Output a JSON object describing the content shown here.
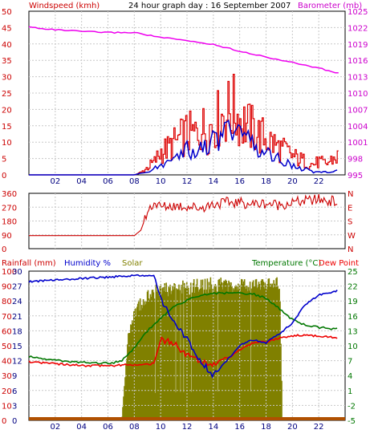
{
  "header": {
    "title": "24 hour graph day : 16 September 2007",
    "left_label": "Windspeed (kmh)",
    "right_label": "Barometer (mb)"
  },
  "colors": {
    "windspeed": "#dd0000",
    "windgust": "#dd0000",
    "windavg": "#0000cc",
    "barometer": "#ee00ee",
    "winddir": "#cc0000",
    "rainfall": "#cc0000",
    "humidity": "#0000cc",
    "solar": "#808000",
    "temperature": "#007700",
    "dewpoint": "#ee0000",
    "axis_left": "#cc0000",
    "axis_right": "#cc00cc",
    "axis_temp": "#007700",
    "grid": "#c8c8c8",
    "tick": "#000080"
  },
  "chart_data": [
    {
      "type": "line",
      "title": "24 hour graph day : 16 September 2007",
      "ylabel": "Windspeed (kmh)",
      "y2label": "Barometer (mb)",
      "ylim": [
        0,
        50
      ],
      "y2lim": [
        995,
        1025
      ],
      "x_ticks": [
        "02",
        "04",
        "06",
        "08",
        "10",
        "12",
        "14",
        "16",
        "18",
        "20",
        "22"
      ],
      "y_ticks": [
        "0",
        "5",
        "10",
        "15",
        "20",
        "25",
        "30",
        "35",
        "40",
        "45",
        "50"
      ],
      "y2_ticks": [
        "995",
        "998",
        "1001",
        "1004",
        "1007",
        "1010",
        "1013",
        "1016",
        "1019",
        "1022",
        "1025"
      ],
      "grid": true,
      "series": [
        {
          "name": "Windspeed (kmh)",
          "x": [
            0,
            8,
            8.5,
            9,
            9.5,
            10,
            10.5,
            11,
            11.5,
            12,
            12.5,
            13,
            13.5,
            14,
            14.5,
            15,
            15.5,
            16,
            16.5,
            17,
            17.5,
            18,
            18.5,
            19,
            19.5,
            20,
            20.5,
            21,
            21.5,
            22,
            22.5,
            23,
            23.5
          ],
          "values": [
            0,
            0,
            1,
            3,
            5,
            9,
            10,
            12,
            14,
            16,
            15,
            18,
            17,
            20,
            22,
            24,
            25,
            21,
            19,
            17,
            15,
            14,
            12,
            10,
            9,
            7,
            6,
            5,
            4,
            5,
            4,
            6,
            7
          ]
        },
        {
          "name": "Windspeed average",
          "x": [
            0,
            8,
            8.5,
            9,
            9.5,
            10,
            10.5,
            11,
            11.5,
            12,
            12.5,
            13,
            13.5,
            14,
            14.5,
            15,
            15.5,
            16,
            16.5,
            17,
            17.5,
            18,
            18.5,
            19,
            19.5,
            20,
            20.5,
            21,
            21.5,
            22,
            22.5,
            23,
            23.5
          ],
          "values": [
            0,
            0,
            0.5,
            1,
            2,
            3,
            4,
            5,
            7,
            8,
            7,
            9,
            8,
            11,
            12,
            13,
            14,
            12,
            11,
            9,
            8,
            7,
            6,
            5,
            4,
            3,
            2,
            2,
            1,
            1,
            1,
            1,
            2
          ]
        },
        {
          "name": "Barometer (mb)",
          "x": [
            0,
            2,
            4,
            6,
            8,
            10,
            12,
            14,
            16,
            18,
            20,
            22,
            23.5
          ],
          "values": [
            1022.1,
            1021.6,
            1021.3,
            1021.1,
            1021.1,
            1020.2,
            1019.6,
            1018.9,
            1017.7,
            1016.6,
            1015.6,
            1014.6,
            1013.6
          ]
        }
      ]
    },
    {
      "type": "line",
      "ylim": [
        0,
        360
      ],
      "y_ticks": [
        "0",
        "90",
        "180",
        "270",
        "360"
      ],
      "y2_ticks": [
        "N",
        "W",
        "S",
        "E",
        "N"
      ],
      "grid": true,
      "series": [
        {
          "name": "Wind direction",
          "x": [
            0,
            8,
            8.5,
            9,
            9.5,
            10,
            11,
            12,
            13,
            14,
            15,
            16,
            17,
            18,
            19,
            20,
            21,
            22,
            23,
            23.5
          ],
          "values": [
            85,
            85,
            120,
            240,
            300,
            270,
            280,
            275,
            265,
            290,
            300,
            300,
            290,
            295,
            285,
            300,
            310,
            320,
            310,
            300
          ]
        }
      ]
    },
    {
      "type": "line",
      "ylabel": "Rainfall (mm)",
      "y2label": "Temperature (°C)",
      "y_ticks": [
        "0",
        "10",
        "20",
        "30",
        "40",
        "50",
        "60",
        "70",
        "80",
        "90",
        "100"
      ],
      "y_ticks_rain": [
        "0",
        "3",
        "6",
        "9",
        "12",
        "15",
        "18",
        "21",
        "24",
        "27",
        "30"
      ],
      "y2_ticks": [
        "-5",
        "-2",
        "1",
        "4",
        "7",
        "10",
        "13",
        "16",
        "19",
        "22",
        "25"
      ],
      "ylim": [
        0,
        100
      ],
      "y2lim": [
        -5,
        25
      ],
      "legend": [
        "Rainfall (mm)",
        "Humidity %",
        "Solar",
        "Temperature (°C)",
        "Dew Point"
      ],
      "grid": true,
      "series": [
        {
          "name": "Humidity %",
          "x": [
            0,
            2,
            4,
            6,
            8,
            9.5,
            10,
            11,
            12,
            13,
            14,
            15,
            16,
            17,
            18,
            19,
            20,
            21,
            22,
            23.5
          ],
          "values": [
            93,
            94,
            95,
            96,
            97,
            97,
            82,
            65,
            55,
            40,
            30,
            40,
            50,
            54,
            52,
            58,
            65,
            78,
            84,
            87
          ]
        },
        {
          "name": "Solar",
          "x": [
            0,
            7,
            7.5,
            8,
            9,
            10,
            12,
            14,
            16,
            18,
            19,
            19.2,
            23.5
          ],
          "values": [
            0,
            0,
            60,
            78,
            90,
            93,
            95,
            97,
            97,
            97,
            97,
            0,
            0
          ]
        },
        {
          "name": "Temperature (°C)",
          "x": [
            0,
            2,
            4,
            6,
            7,
            8,
            9,
            10,
            11,
            12,
            13,
            14,
            15,
            16,
            17,
            18,
            19,
            20,
            21,
            22,
            23.5
          ],
          "values": [
            7.8,
            7.1,
            6.6,
            6.5,
            6.8,
            9.5,
            13.0,
            15.5,
            17.8,
            19.2,
            20.0,
            20.5,
            20.6,
            20.6,
            20.4,
            19.6,
            17.5,
            15.2,
            14.2,
            13.7,
            13.3
          ]
        },
        {
          "name": "Dew Point",
          "x": [
            0,
            2,
            4,
            6,
            8,
            9.5,
            10,
            11,
            12,
            13,
            14,
            15,
            16,
            17,
            18,
            19,
            20,
            21,
            22,
            23.5
          ],
          "values": [
            6.8,
            6.4,
            6.0,
            6.0,
            6.2,
            6.4,
            11.3,
            10.4,
            8.1,
            7.1,
            6.1,
            7.3,
            9.2,
            10.6,
            10.8,
            11.5,
            12.0,
            12.2,
            11.9,
            11.6
          ]
        },
        {
          "name": "Rainfall (mm)",
          "x": [
            0,
            23.5
          ],
          "values": [
            0,
            0
          ]
        }
      ]
    }
  ]
}
